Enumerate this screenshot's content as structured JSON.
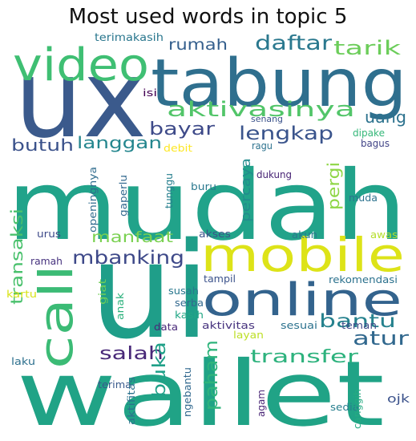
{
  "chart_data": {
    "type": "wordcloud",
    "title": "Most used words in topic 5",
    "words": [
      {
        "text": "ux",
        "color": "#3b5a8c"
      },
      {
        "text": "tabung",
        "color": "#2f6f8e"
      },
      {
        "text": "video",
        "color": "#3fbf73"
      },
      {
        "text": "mudah",
        "color": "#21a38a"
      },
      {
        "text": "ui",
        "color": "#1f9e89"
      },
      {
        "text": "wallet",
        "color": "#20a386"
      },
      {
        "text": "mobile",
        "color": "#dde318"
      },
      {
        "text": "online",
        "color": "#33638d"
      },
      {
        "text": "call",
        "color": "#3bbb75"
      },
      {
        "text": "aktivasinya",
        "color": "#52c569"
      },
      {
        "text": "daftar",
        "color": "#2a788e"
      },
      {
        "text": "tarik",
        "color": "#6ccd5a"
      },
      {
        "text": "rumah",
        "color": "#355f8d"
      },
      {
        "text": "uang",
        "color": "#2c728e"
      },
      {
        "text": "bayar",
        "color": "#3e4a89"
      },
      {
        "text": "lengkap",
        "color": "#3a548c"
      },
      {
        "text": "butuh",
        "color": "#3b528b"
      },
      {
        "text": "langgan",
        "color": "#24868e"
      },
      {
        "text": "percaya",
        "color": "#228c8d"
      },
      {
        "text": "pergi",
        "color": "#8ed645"
      },
      {
        "text": "transaksi",
        "color": "#4ac16d"
      },
      {
        "text": "manfaat",
        "color": "#7ad151"
      },
      {
        "text": "mbanking",
        "color": "#3e4989"
      },
      {
        "text": "bantu",
        "color": "#26828e"
      },
      {
        "text": "atur",
        "color": "#31688e"
      },
      {
        "text": "salah",
        "color": "#482878"
      },
      {
        "text": "transfer",
        "color": "#2db27d"
      },
      {
        "text": "buka",
        "color": "#1fa088"
      },
      {
        "text": "paham",
        "color": "#2fb47c"
      },
      {
        "text": "terimakasih",
        "color": "#2a778e"
      },
      {
        "text": "isi",
        "color": "#440154"
      },
      {
        "text": "senang",
        "color": "#3b528b"
      },
      {
        "text": "ragu",
        "color": "#2c728e"
      },
      {
        "text": "dipake",
        "color": "#35b779"
      },
      {
        "text": "bagus",
        "color": "#414487"
      },
      {
        "text": "debit",
        "color": "#fde725"
      },
      {
        "text": "gaperlu",
        "color": "#31688e"
      },
      {
        "text": "tunggu",
        "color": "#277f8e"
      },
      {
        "text": "openingnya",
        "color": "#2f6c8e"
      },
      {
        "text": "buru",
        "color": "#2a788e"
      },
      {
        "text": "dukung",
        "color": "#482475"
      },
      {
        "text": "muda",
        "color": "#2c728e"
      },
      {
        "text": "urus",
        "color": "#3e4a89"
      },
      {
        "text": "akses",
        "color": "#3b528b"
      },
      {
        "text": "akun",
        "color": "#2a788e"
      },
      {
        "text": "awas",
        "color": "#b5de2b"
      },
      {
        "text": "ramah",
        "color": "#46327e"
      },
      {
        "text": "tampil",
        "color": "#3b528b"
      },
      {
        "text": "rekomendasi",
        "color": "#2c728e"
      },
      {
        "text": "kartu",
        "color": "#d8e219"
      },
      {
        "text": "giat",
        "color": "#70cf57"
      },
      {
        "text": "anak",
        "color": "#2db27d"
      },
      {
        "text": "susah",
        "color": "#2a788e"
      },
      {
        "text": "serba",
        "color": "#31688e"
      },
      {
        "text": "kasih",
        "color": "#22a785"
      },
      {
        "text": "data",
        "color": "#482878"
      },
      {
        "text": "aktivitas",
        "color": "#46327e"
      },
      {
        "text": "sesuai",
        "color": "#2c728e"
      },
      {
        "text": "teman",
        "color": "#3e4a89"
      },
      {
        "text": "layan",
        "color": "#bddf26"
      },
      {
        "text": "laku",
        "color": "#2d708e"
      },
      {
        "text": "terima",
        "color": "#38598c"
      },
      {
        "text": "aktifitas",
        "color": "#2c728e"
      },
      {
        "text": "ngebantu",
        "color": "#31688e"
      },
      {
        "text": "agam",
        "color": "#482475"
      },
      {
        "text": "sedia",
        "color": "#277f8e"
      },
      {
        "text": "canggih",
        "color": "#25ab82"
      },
      {
        "text": "ojk",
        "color": "#3b528b"
      }
    ]
  }
}
